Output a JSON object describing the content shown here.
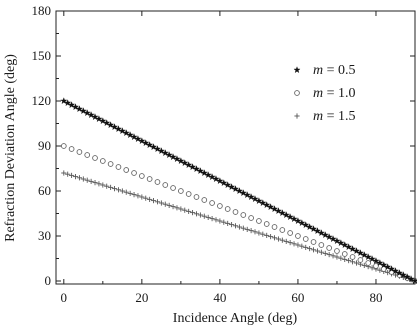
{
  "chart_data": {
    "type": "scatter",
    "xlabel": "Incidence Angle (deg)",
    "ylabel": "Refraction Deviation Angle (deg)",
    "xlim": [
      -2,
      90
    ],
    "ylim": [
      -2,
      180
    ],
    "xticks": [
      0,
      20,
      40,
      60,
      80
    ],
    "xtick_labels": [
      "0",
      "20",
      "40",
      "60",
      "80"
    ],
    "yticks": [
      0,
      30,
      60,
      90,
      120,
      150,
      180
    ],
    "ytick_labels": [
      "0",
      "30",
      "60",
      "90",
      "120",
      "150",
      "180"
    ],
    "grid": false,
    "legend_position": "top-right",
    "series": [
      {
        "name": "m = 0.5",
        "name_var": "m",
        "name_value": "= 0.5",
        "marker": "star",
        "color": "#111111",
        "x_range": [
          0,
          90
        ],
        "step": 1,
        "y_start": 120,
        "y_end": 0
      },
      {
        "name": "m = 1.0",
        "name_var": "m",
        "name_value": "= 1.0",
        "marker": "open-circle",
        "color": "#666666",
        "x_range": [
          0,
          90
        ],
        "step": 2,
        "y_start": 90,
        "y_end": 0
      },
      {
        "name": "m = 1.5",
        "name_var": "m",
        "name_value": "= 1.5",
        "marker": "plus",
        "color": "#555555",
        "x_range": [
          0,
          90
        ],
        "step": 1,
        "y_start": 72,
        "y_end": 0
      }
    ]
  }
}
